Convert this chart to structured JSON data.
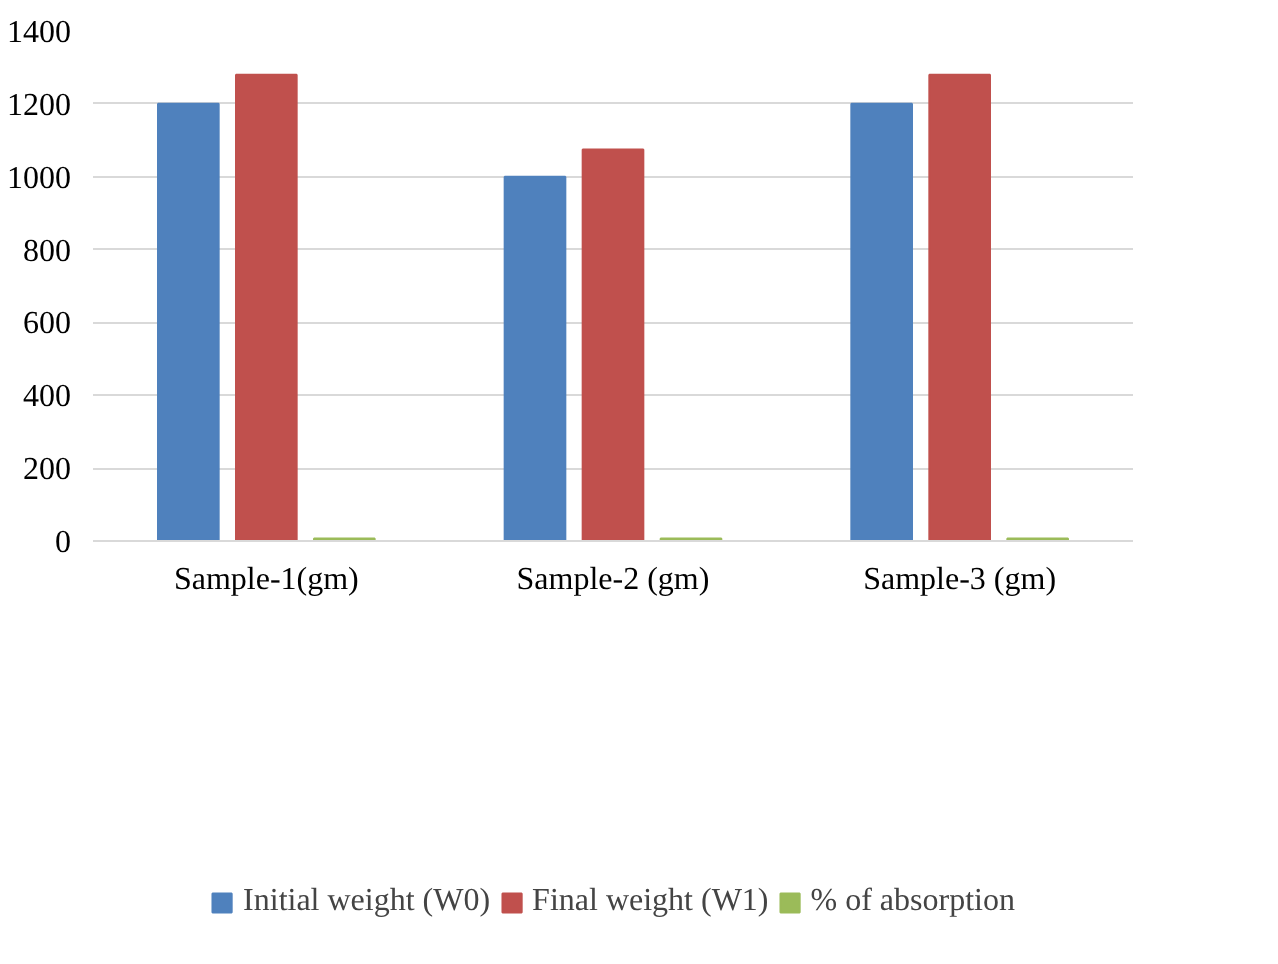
{
  "chart_data": {
    "type": "bar",
    "categories": [
      "Sample-1(gm)",
      "Sample-2 (gm)",
      "Sample-3 (gm)"
    ],
    "series": [
      {
        "name": "Initial weight (W0)",
        "color": "#4f81bd",
        "values": [
          1200,
          1000,
          1200
        ]
      },
      {
        "name": "Final weight (W1)",
        "color": "#c0504d",
        "values": [
          1280,
          1075,
          1280
        ]
      },
      {
        "name": "% of absorption",
        "color": "#9bbb59",
        "values": [
          7,
          7,
          7
        ]
      }
    ],
    "ylim": [
      0,
      1400
    ],
    "yticks": [
      0,
      200,
      400,
      600,
      800,
      1000,
      1200,
      1400
    ],
    "grid": "y",
    "legend": "bottom"
  }
}
